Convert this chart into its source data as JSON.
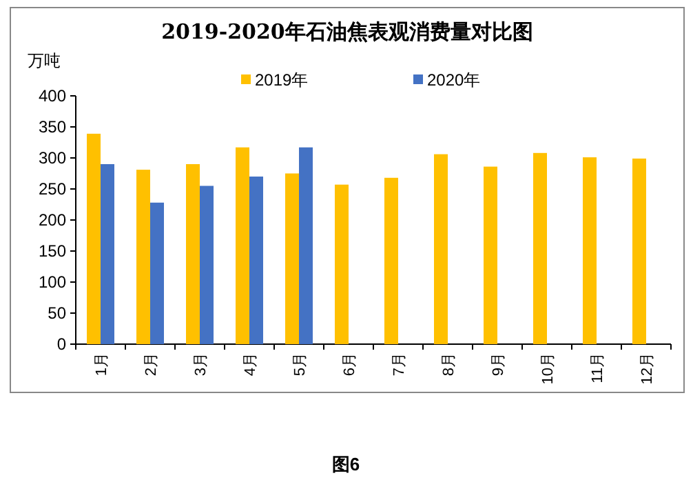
{
  "chart_data": {
    "type": "bar",
    "title": "2019-2020年石油焦表观消费量对比图",
    "ylabel": "万吨",
    "categories": [
      "1月",
      "2月",
      "3月",
      "4月",
      "5月",
      "6月",
      "7月",
      "8月",
      "9月",
      "10月",
      "11月",
      "12月"
    ],
    "series": [
      {
        "name": "2019年",
        "color": "#ffc000",
        "values": [
          339,
          281,
          290,
          317,
          275,
          257,
          268,
          306,
          286,
          308,
          301,
          299
        ]
      },
      {
        "name": "2020年",
        "color": "#4472c4",
        "values": [
          290,
          228,
          255,
          270,
          317,
          null,
          null,
          null,
          null,
          null,
          null,
          null
        ]
      }
    ],
    "ylim": [
      0,
      400
    ],
    "yticks": [
      0,
      50,
      100,
      150,
      200,
      250,
      300,
      350,
      400
    ],
    "grid": false,
    "legend": "top",
    "annotations": [
      "图6"
    ]
  }
}
